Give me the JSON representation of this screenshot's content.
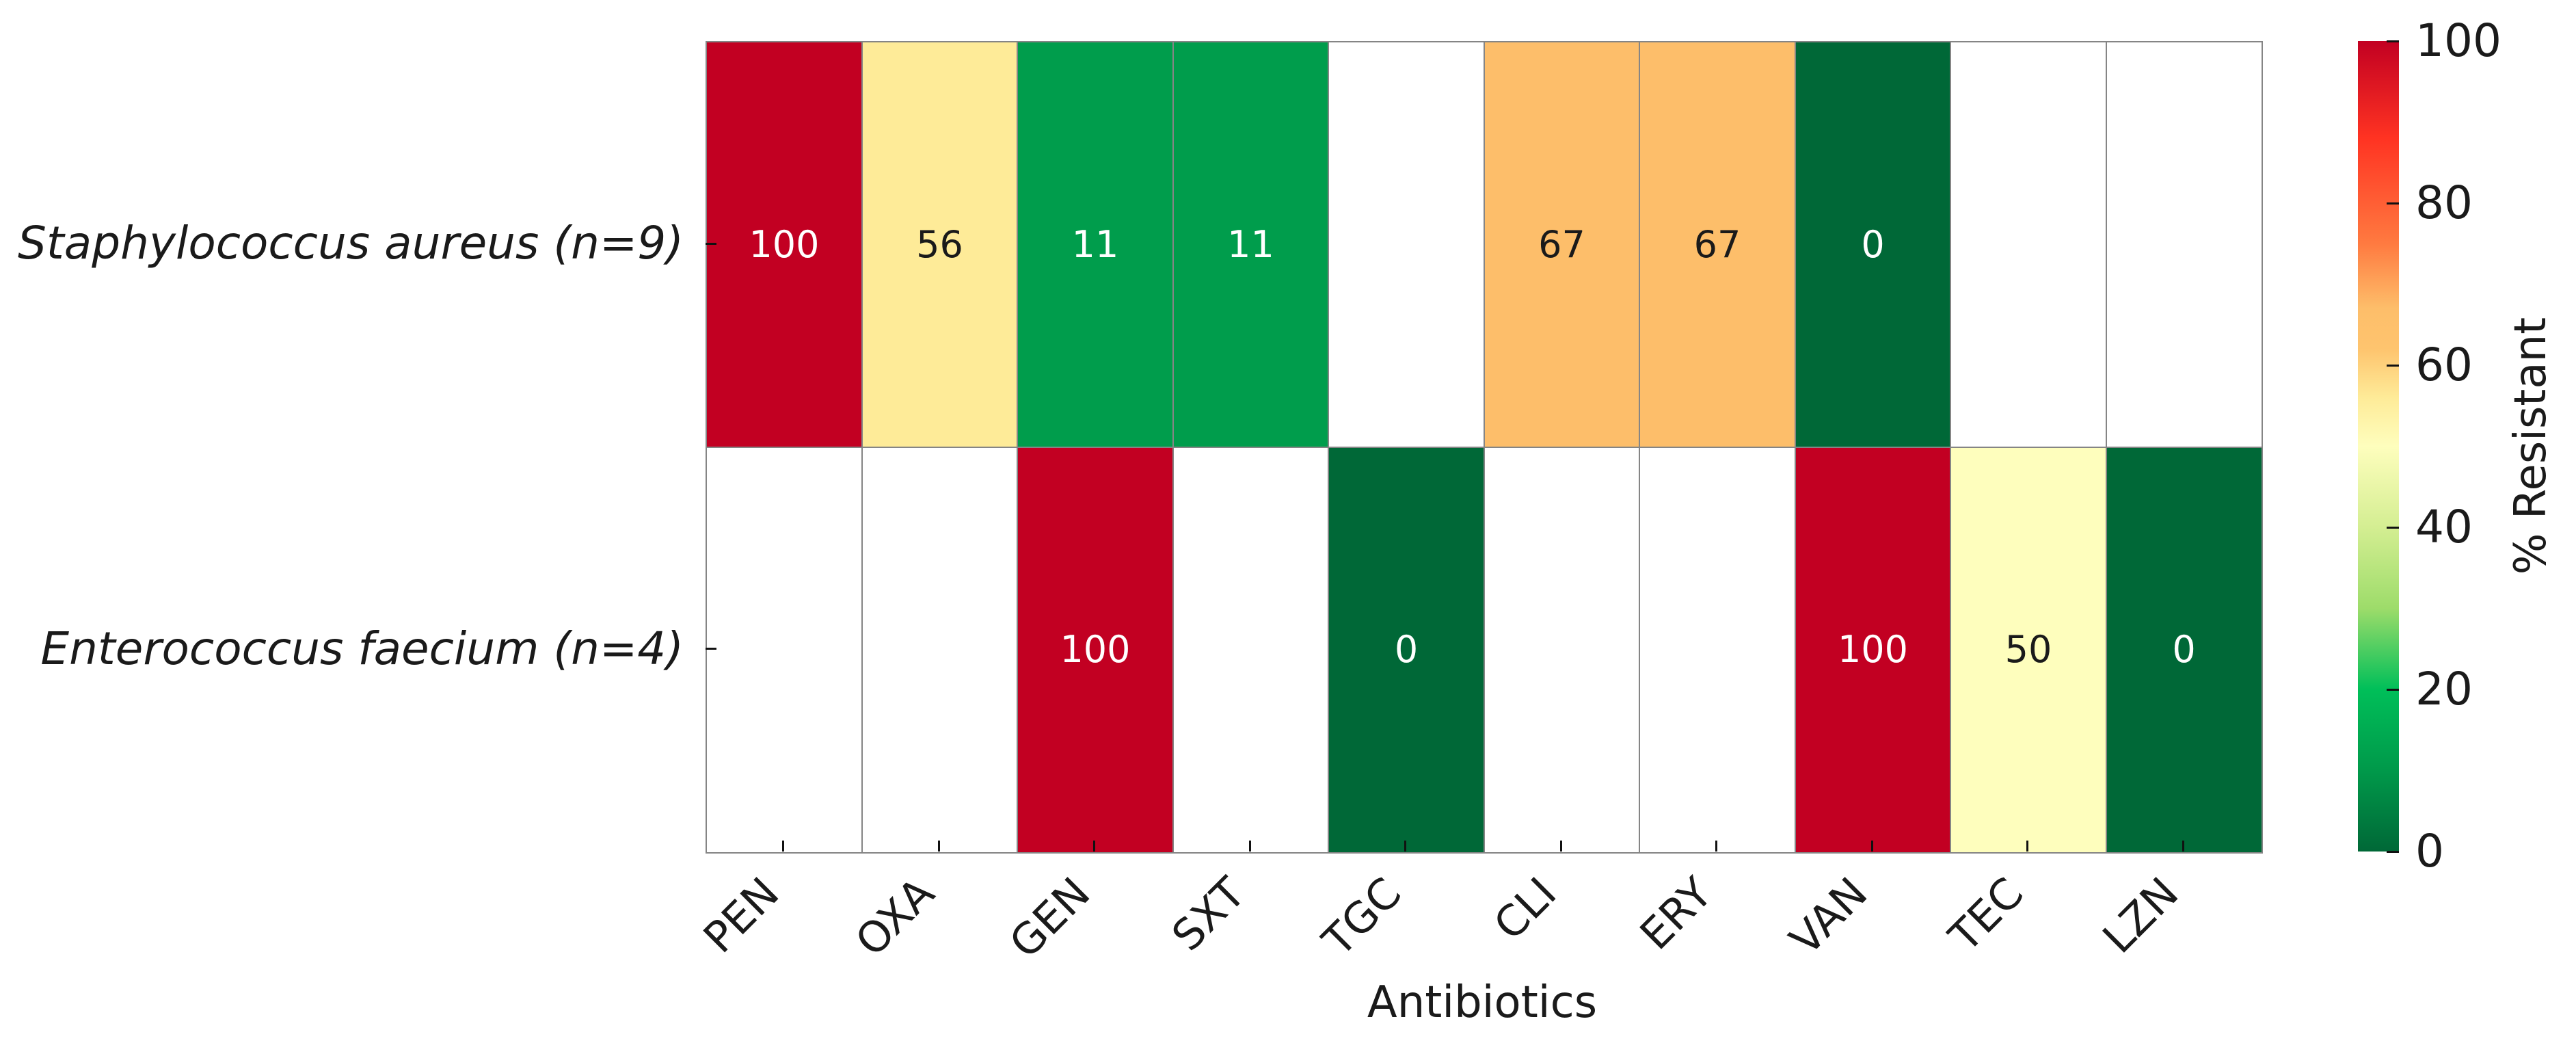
{
  "chart_data": {
    "type": "heatmap",
    "title": "",
    "xlabel": "Antibiotics",
    "ylabel": "",
    "x_categories": [
      "PEN",
      "OXA",
      "GEN",
      "SXT",
      "TGC",
      "CLI",
      "ERY",
      "VAN",
      "TEC",
      "LZN"
    ],
    "y_categories": [
      "Staphylococcus aureus (n=9)",
      "Enterococcus faecium (n=4)"
    ],
    "values": [
      [
        100,
        56,
        11,
        11,
        null,
        67,
        67,
        0,
        null,
        null
      ],
      [
        null,
        null,
        100,
        null,
        0,
        null,
        null,
        100,
        50,
        0
      ]
    ],
    "colorbar": {
      "label": "% Resistant",
      "range": [
        0,
        100
      ],
      "ticks": [
        0,
        20,
        40,
        60,
        80,
        100
      ],
      "tick_labels": [
        "0",
        "20",
        "40",
        "60",
        "80",
        "100"
      ],
      "colormap": "red-yellow-green (reversed: high=red, low=green)"
    },
    "missing_color": "#ffffff",
    "grid_color": "#858585"
  },
  "colors": {
    "stops": [
      {
        "v": 0,
        "c": "#006837"
      },
      {
        "v": 10,
        "c": "#00994a"
      },
      {
        "v": 20,
        "c": "#00bf59"
      },
      {
        "v": 30,
        "c": "#9ddc6a"
      },
      {
        "v": 40,
        "c": "#d4ee92"
      },
      {
        "v": 50,
        "c": "#fefebd"
      },
      {
        "v": 56,
        "c": "#feeb98"
      },
      {
        "v": 62,
        "c": "#fec46e"
      },
      {
        "v": 67,
        "c": "#fdbe6a"
      },
      {
        "v": 75,
        "c": "#ff7a40"
      },
      {
        "v": 88,
        "c": "#ff3322"
      },
      {
        "v": 100,
        "c": "#c20022"
      }
    ]
  }
}
